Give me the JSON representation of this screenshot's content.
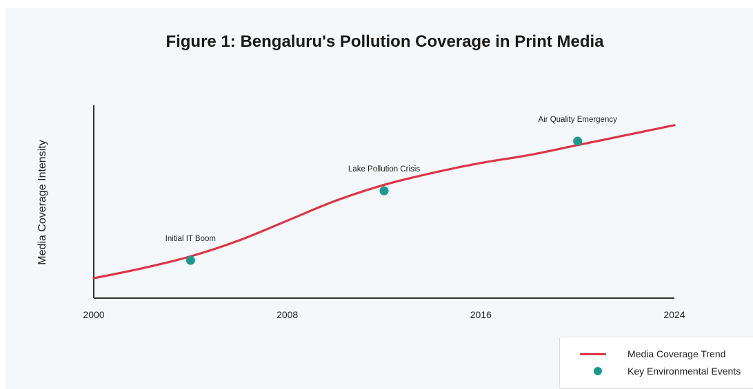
{
  "chart_data": {
    "type": "line",
    "title": "Figure 1: Bengaluru's Pollution Coverage in Print Media",
    "xlabel": "",
    "ylabel": "Media Coverage Intensity",
    "x_ticks": [
      "2000",
      "2008",
      "2016",
      "2024"
    ],
    "xlim": [
      2000,
      2024
    ],
    "y_ticks_shown": false,
    "grid": false,
    "colors": {
      "trend": "#dc3545",
      "events": "#1a9a8a",
      "background": "#f5f8fa",
      "axis": "#333333"
    },
    "series": [
      {
        "name": "Media Coverage Trend",
        "kind": "line",
        "x": [
          2000,
          2002,
          2004,
          2006,
          2008,
          2010,
          2012,
          2014,
          2016,
          2018,
          2020,
          2022,
          2024
        ],
        "y": [
          1.0,
          1.5,
          2.1,
          2.9,
          3.9,
          4.9,
          5.7,
          6.3,
          6.8,
          7.2,
          7.7,
          8.2,
          8.7
        ]
      },
      {
        "name": "Key Environmental Events",
        "kind": "scatter",
        "x": [
          2004,
          2012,
          2020
        ],
        "y": [
          1.9,
          5.4,
          7.9
        ],
        "labels": [
          "Initial IT Boom",
          "Lake Pollution Crisis",
          "Air Quality Emergency"
        ]
      }
    ],
    "ylim": [
      0,
      9.7
    ],
    "legend": {
      "position": "bottom-right",
      "entries": [
        "Media Coverage Trend",
        "Key Environmental Events"
      ]
    }
  }
}
